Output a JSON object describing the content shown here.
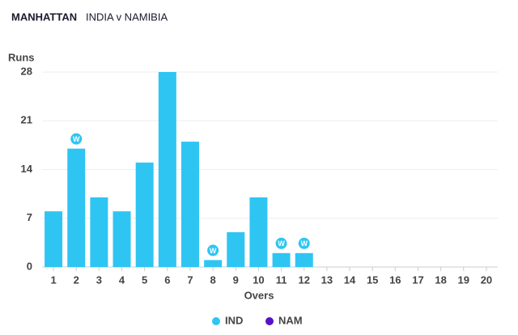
{
  "chart_data": {
    "type": "bar",
    "title": "MANHATTAN",
    "subtitle": "INDIA v NAMIBIA",
    "y_label": "Runs",
    "x_label": "Overs",
    "categories": [
      "1",
      "2",
      "3",
      "4",
      "5",
      "6",
      "7",
      "8",
      "9",
      "10",
      "11",
      "12",
      "13",
      "14",
      "15",
      "16",
      "17",
      "18",
      "19",
      "20"
    ],
    "ylim": [
      0,
      28
    ],
    "yticks": [
      0,
      7,
      14,
      21,
      28
    ],
    "grid": true,
    "wicket_label": "W",
    "series": [
      {
        "name": "IND",
        "color": "#2ec5f3",
        "values": [
          8,
          17,
          10,
          8,
          15,
          28,
          18,
          1,
          5,
          10,
          2,
          2,
          null,
          null,
          null,
          null,
          null,
          null,
          null,
          null
        ],
        "wickets": [
          0,
          1,
          0,
          0,
          0,
          0,
          0,
          1,
          0,
          0,
          1,
          1,
          null,
          null,
          null,
          null,
          null,
          null,
          null,
          null
        ]
      },
      {
        "name": "NAM",
        "color": "#5a10c8",
        "values": [
          null,
          null,
          null,
          null,
          null,
          null,
          null,
          null,
          null,
          null,
          null,
          null,
          null,
          null,
          null,
          null,
          null,
          null,
          null,
          null
        ],
        "wickets": [
          null,
          null,
          null,
          null,
          null,
          null,
          null,
          null,
          null,
          null,
          null,
          null,
          null,
          null,
          null,
          null,
          null,
          null,
          null,
          null
        ]
      }
    ]
  }
}
